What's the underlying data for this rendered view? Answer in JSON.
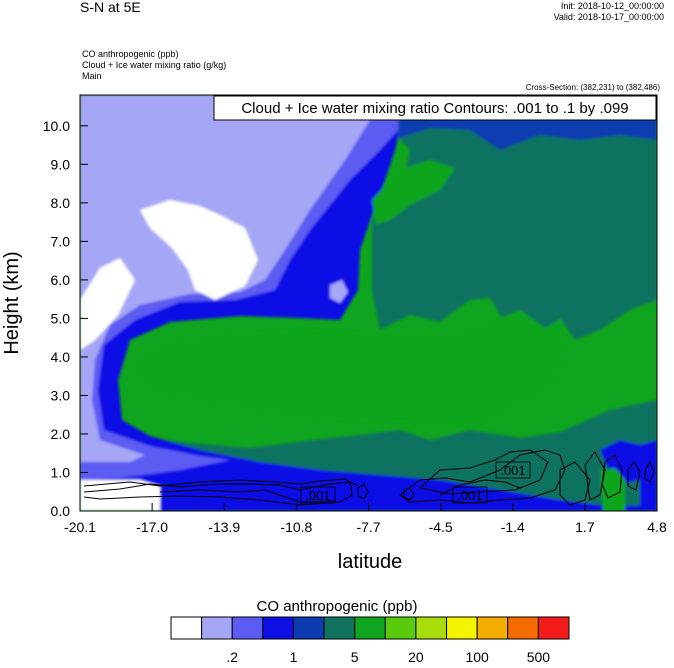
{
  "header": {
    "title": "S-N at 5E",
    "init": "Init: 2018-10-12_00:00:00",
    "valid": "Valid: 2018-10-17_00:00:00",
    "field1": "CO anthropogenic   (ppb)",
    "field2": "Cloud + Ice water mixing ratio   (g/kg)",
    "field3": "Main",
    "cross_section": "Cross-Section: (382,231) to (382,486)"
  },
  "contour_label": "Cloud + Ice water mixing ratio Contours: .001 to .1 by .099",
  "contour_value_labels": [
    ".001",
    ".001",
    ".001"
  ],
  "chart_data": {
    "type": "heatmap",
    "title": "S-N at 5E",
    "xlabel": "latitude",
    "ylabel": "Height (km)",
    "x_ticks": [
      "-20.1",
      "-17.0",
      "-13.9",
      "-10.8",
      "-7.7",
      "-4.5",
      "-1.4",
      "1.7",
      "4.8"
    ],
    "y_ticks": [
      "0.0",
      "1.0",
      "2.0",
      "3.0",
      "4.0",
      "5.0",
      "6.0",
      "7.0",
      "8.0",
      "9.0",
      "10.0"
    ],
    "xlim": [
      -20.1,
      4.8
    ],
    "ylim": [
      0,
      10.8
    ],
    "colorbar": {
      "title": "CO anthropogenic  (ppb)",
      "colors": [
        "#ffffff",
        "#a6a6f6",
        "#5c5cf2",
        "#1010e6",
        "#0c3cb0",
        "#0f7360",
        "#10a51e",
        "#58cc0a",
        "#a6dc0a",
        "#f4f400",
        "#f4ae00",
        "#f46c00",
        "#f41b1b"
      ],
      "labels": [
        ".2",
        "1",
        "5",
        "20",
        "100",
        "500"
      ]
    }
  }
}
